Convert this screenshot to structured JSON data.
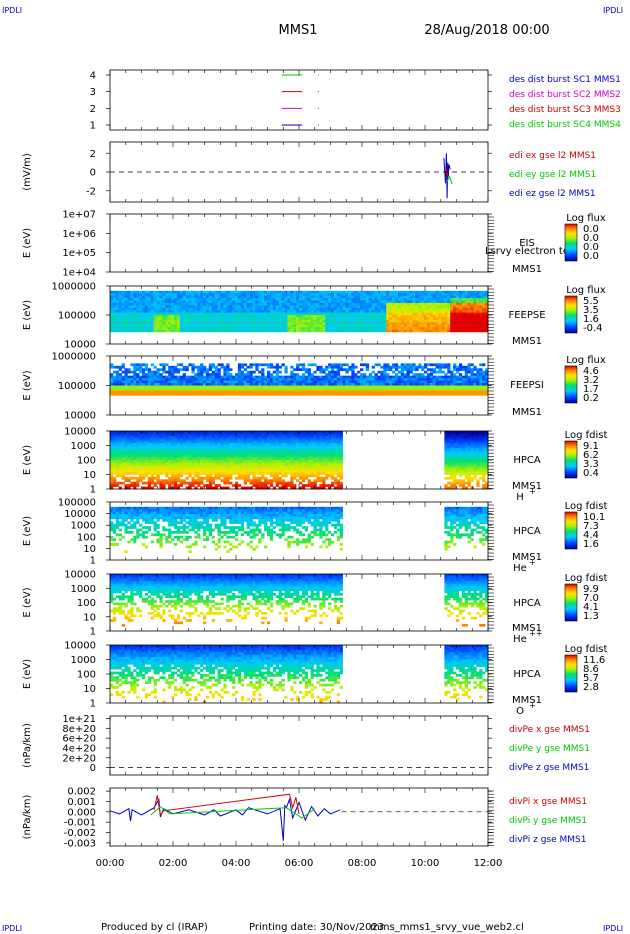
{
  "header": {
    "corner_label": "IPDLI",
    "spacecraft": "MMS1",
    "date": "28/Aug/2018 00:00"
  },
  "footer": {
    "produced": "Produced by cl (IRAP)",
    "printing": "Printing date: 30/Nov/2023",
    "filename": "mms_mms1_srvy_vue_web2.cl"
  },
  "time_axis": {
    "ticks": [
      "00:00",
      "02:00",
      "04:00",
      "06:00",
      "08:00",
      "10:00",
      "12:00"
    ],
    "range_hours": [
      0,
      12
    ]
  },
  "colors": {
    "mms1": "#0000c8",
    "mms2": "#d200d2",
    "mms3": "#d20000",
    "mms4": "#00c800"
  },
  "chart_data": [
    {
      "type": "line",
      "id": "des-dist-burst",
      "yticks": [
        "1",
        "2",
        "3",
        "4"
      ],
      "ylim": [
        0.7,
        4.3
      ],
      "legend": [
        {
          "label": "des dist burst SC1 MMS1",
          "color": "#0000c8"
        },
        {
          "label": "des dist burst SC2 MMS2",
          "color": "#d200d2"
        },
        {
          "label": "des dist burst SC3 MMS3",
          "color": "#d20000"
        },
        {
          "label": "des dist burst SC4 MMS4",
          "color": "#00c800"
        }
      ],
      "segments": [
        {
          "y": 4,
          "x": [
            5.45,
            6.1
          ],
          "color": "#00c800"
        },
        {
          "y": 4,
          "x": [
            6.6,
            6.63
          ],
          "color": "#00c800"
        },
        {
          "y": 3,
          "x": [
            5.45,
            6.1
          ],
          "color": "#d20000"
        },
        {
          "y": 3,
          "x": [
            6.6,
            6.63
          ],
          "color": "#d20000"
        },
        {
          "y": 2,
          "x": [
            5.45,
            6.1
          ],
          "color": "#d200d2"
        },
        {
          "y": 2,
          "x": [
            6.6,
            6.63
          ],
          "color": "#d200d2"
        },
        {
          "y": 1,
          "x": [
            5.45,
            6.1
          ],
          "color": "#0000c8"
        },
        {
          "y": 1,
          "x": [
            6.6,
            6.63
          ],
          "color": "#0000c8"
        }
      ]
    },
    {
      "type": "line",
      "id": "edi-e-gse",
      "ylabel": "(mV/m)",
      "yticks": [
        "-2",
        "0",
        "2"
      ],
      "ylim": [
        -3.2,
        3.2
      ],
      "legend": [
        {
          "label": "edi ex gse l2 MMS1",
          "color": "#d20000"
        },
        {
          "label": "edi ey gse l2 MMS1",
          "color": "#00c800"
        },
        {
          "label": "edi ez gse l2 MMS1",
          "color": "#0000c8"
        }
      ],
      "series": [
        {
          "name": "edi ez gse l2 MMS1",
          "color": "#0000c8",
          "x": [
            10.6,
            10.65,
            10.68,
            10.7,
            10.72,
            10.74,
            10.76,
            10.8
          ],
          "y": [
            1.5,
            -1.2,
            2.0,
            -2.8,
            1.0,
            -0.5,
            0.8,
            0.3
          ]
        },
        {
          "name": "edi ex gse l2 MMS1",
          "color": "#d20000",
          "x": [
            10.66,
            10.7,
            10.73
          ],
          "y": [
            0.5,
            -0.6,
            0.2
          ]
        },
        {
          "name": "edi ey gse l2 MMS1",
          "color": "#00c800",
          "x": [
            10.7,
            10.78,
            10.86
          ],
          "y": [
            -1.0,
            -0.5,
            -1.3
          ]
        }
      ]
    },
    {
      "type": "heatmap",
      "id": "eis",
      "ylabel": "E (eV)",
      "yticks": [
        "1e+04",
        "1e+05",
        "1e+06",
        "1e+07"
      ],
      "label_right": [
        "EIS",
        "MMS1"
      ],
      "overlay_text": "Lsrvy electron to",
      "colorbar": {
        "title": "Log flux",
        "ticks": [
          "0.0",
          "0.0",
          "0.0",
          "0.0"
        ]
      }
    },
    {
      "type": "heatmap",
      "id": "feeps-e",
      "ylabel": "E (eV)",
      "yticks": [
        "10000",
        "100000",
        "1000000"
      ],
      "label_right": [
        "FEEPSE",
        "MMS1"
      ],
      "colorbar": {
        "title": "Log flux",
        "ticks": [
          "5.5",
          "3.5",
          "1.6",
          "-0.4"
        ]
      }
    },
    {
      "type": "heatmap",
      "id": "feeps-i",
      "ylabel": "E (eV)",
      "yticks": [
        "10000",
        "100000",
        "1000000"
      ],
      "label_right": [
        "FEEPSI",
        "MMS1"
      ],
      "colorbar": {
        "title": "Log flux",
        "ticks": [
          "4.6",
          "3.2",
          "1.7",
          "0.2"
        ]
      }
    },
    {
      "type": "heatmap",
      "id": "hpca-h",
      "ylabel": "E (eV)",
      "yticks": [
        "1",
        "10",
        "100",
        "1000",
        "10000"
      ],
      "label_right": [
        "HPCA",
        "MMS1",
        "H"
      ],
      "species_sup": "+",
      "colorbar": {
        "title": "Log fdist",
        "ticks": [
          "9.1",
          "6.2",
          "3.3",
          "0.4"
        ]
      }
    },
    {
      "type": "heatmap",
      "id": "hpca-he",
      "ylabel": "E (eV)",
      "yticks": [
        "1",
        "10",
        "100",
        "1000",
        "10000",
        "100000"
      ],
      "label_right": [
        "HPCA",
        "MMS1",
        "He"
      ],
      "species_sup": "+",
      "colorbar": {
        "title": "Log fdist",
        "ticks": [
          "10.1",
          "7.3",
          "4.4",
          "1.6"
        ]
      }
    },
    {
      "type": "heatmap",
      "id": "hpca-hepp",
      "ylabel": "E (eV)",
      "yticks": [
        "1",
        "10",
        "100",
        "1000",
        "10000"
      ],
      "label_right": [
        "HPCA",
        "MMS1",
        "He"
      ],
      "species_sup": "++",
      "colorbar": {
        "title": "Log fdist",
        "ticks": [
          "9.9",
          "7.0",
          "4.1",
          "1.3"
        ]
      }
    },
    {
      "type": "heatmap",
      "id": "hpca-o",
      "ylabel": "E (eV)",
      "yticks": [
        "1",
        "10",
        "100",
        "1000",
        "10000"
      ],
      "label_right": [
        "HPCA",
        "MMS1",
        "O"
      ],
      "species_sup": "+",
      "colorbar": {
        "title": "Log fdist",
        "ticks": [
          "11.6",
          "8.6",
          "5.7",
          "2.8"
        ]
      }
    },
    {
      "type": "line",
      "id": "divpe",
      "ylabel": "(nPa/km)",
      "yticks": [
        "0",
        "2e+20",
        "4e+20",
        "6e+20",
        "8e+20",
        "1e+21"
      ],
      "ylim": [
        -1.5e+20,
        1.05e+21
      ],
      "legend": [
        {
          "label": "divPe x gse MMS1",
          "color": "#d20000"
        },
        {
          "label": "divPe y gse MMS1",
          "color": "#00c800"
        },
        {
          "label": "divPe z gse MMS1",
          "color": "#0000c8"
        }
      ],
      "series": []
    },
    {
      "type": "line",
      "id": "divpi",
      "ylabel": "(nPa/km)",
      "yticks": [
        "-0.003",
        "-0.002",
        "-0.001",
        "0.000",
        "0.001",
        "0.002"
      ],
      "ylim": [
        -0.0033,
        0.0023
      ],
      "legend": [
        {
          "label": "divPi x gse MMS1",
          "color": "#d20000"
        },
        {
          "label": "divPi y gse MMS1",
          "color": "#00c800"
        },
        {
          "label": "divPi z gse MMS1",
          "color": "#0000c8"
        }
      ],
      "series": [
        {
          "name": "divPi z gse MMS1",
          "color": "#0000c8",
          "x": [
            0,
            0.3,
            0.6,
            0.65,
            0.7,
            1.0,
            1.4,
            1.55,
            1.6,
            1.7,
            2.0,
            2.5,
            3.0,
            3.3,
            3.5,
            4.0,
            4.2,
            4.4,
            5.0,
            5.4,
            5.5,
            5.55,
            5.6,
            5.7,
            5.8,
            6.0,
            6.2,
            6.4,
            6.6,
            6.8,
            7.0,
            7.3
          ],
          "y": [
            0.0001,
            -0.0002,
            0.0003,
            -0.0009,
            0.0002,
            -0.0003,
            0.0004,
            0.0012,
            -0.0005,
            0.0003,
            -0.0002,
            0.0002,
            -0.0003,
            0.0002,
            -0.0004,
            0.0002,
            -0.0003,
            0.0004,
            -0.0002,
            0.0003,
            -0.0028,
            0.0006,
            0.0004,
            0.0012,
            -0.0006,
            0.0009,
            -0.0008,
            0.0005,
            -0.0004,
            0.0003,
            -0.0002,
            0.0002
          ]
        },
        {
          "name": "divPi x gse MMS1",
          "color": "#d20000",
          "x": [
            1.4,
            1.5,
            1.55,
            1.6,
            1.7,
            5.7,
            5.8,
            5.9,
            6.0
          ],
          "y": [
            0.0002,
            0.0016,
            0.0006,
            -0.0003,
            0.0001,
            0.0017,
            0.0004,
            0.0014,
            -0.0002
          ]
        },
        {
          "name": "divPi y gse MMS1",
          "color": "#00c800",
          "x": [
            1.3,
            1.6,
            1.9,
            5.6,
            6.1,
            6.5
          ],
          "y": [
            -0.0003,
            0.0005,
            -0.0002,
            0.0004,
            -0.0006,
            0.0003
          ]
        }
      ]
    }
  ]
}
